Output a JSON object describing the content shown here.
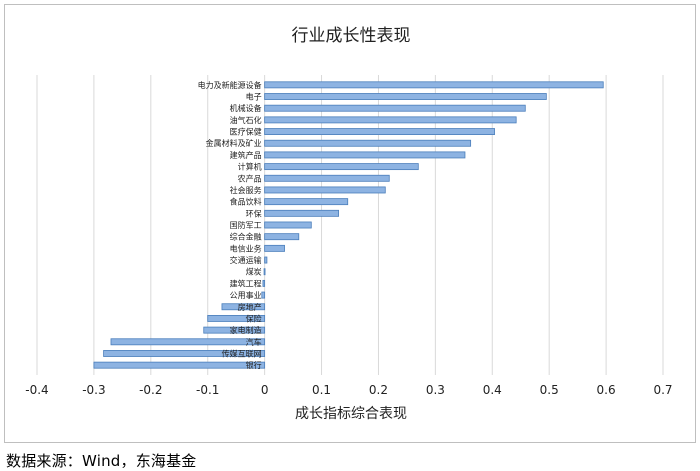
{
  "chart_data": {
    "type": "bar",
    "orientation": "horizontal",
    "title": "行业成长性表现",
    "xlabel": "成长指标综合表现",
    "ylabel": "",
    "xlim": [
      -0.4,
      0.7
    ],
    "xticks": [
      "-0.4",
      "-0.3",
      "-0.2",
      "-0.1",
      "0",
      "0.1",
      "0.2",
      "0.3",
      "0.4",
      "0.5",
      "0.6",
      "0.7"
    ],
    "grid": "vertical",
    "legend": "none",
    "bar_color": "#8db3e2",
    "bar_border": "#4a7ebb",
    "categories": [
      "电力及新能源设备",
      "电子",
      "机械设备",
      "油气石化",
      "医疗保健",
      "金属材料及矿业",
      "建筑产品",
      "计算机",
      "农产品",
      "社会服务",
      "食品饮料",
      "环保",
      "国防军工",
      "综合金融",
      "电信业务",
      "交通运输",
      "煤炭",
      "建筑工程",
      "公用事业",
      "房地产",
      "保险",
      "家电制造",
      "汽车",
      "传媒互联网",
      "银行"
    ],
    "values": [
      0.595,
      0.495,
      0.458,
      0.442,
      0.404,
      0.362,
      0.352,
      0.27,
      0.219,
      0.212,
      0.146,
      0.13,
      0.082,
      0.06,
      0.035,
      0.004,
      -0.001,
      -0.003,
      -0.005,
      -0.075,
      -0.1,
      -0.107,
      -0.27,
      -0.283,
      -0.3
    ]
  },
  "source_note": "数据来源：Wind，东海基金"
}
